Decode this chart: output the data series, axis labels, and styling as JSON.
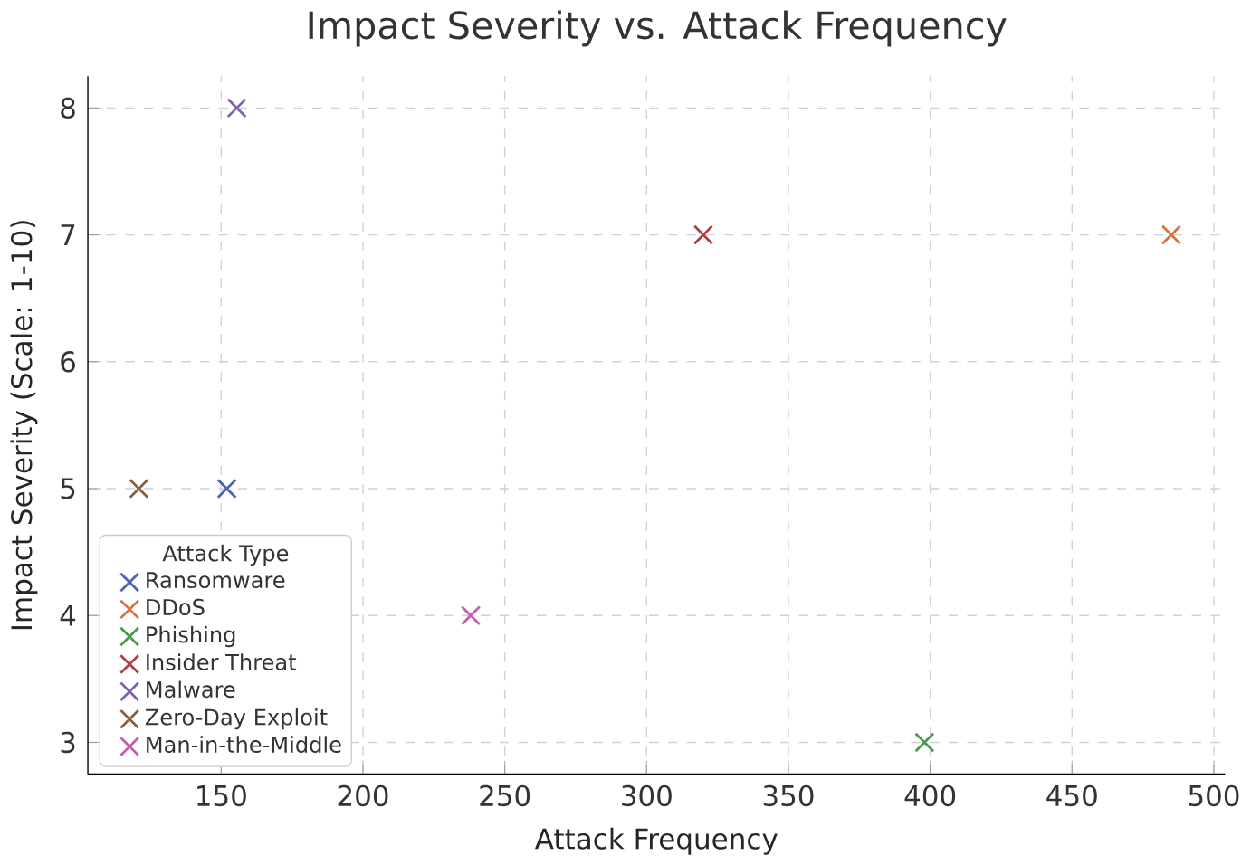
{
  "chart_data": {
    "type": "scatter",
    "title": "Impact Severity vs. Attack Frequency",
    "xlabel": "Attack Frequency",
    "ylabel": "Impact Severity (Scale: 1-10)",
    "legend_title": "Attack Type",
    "legend": "bottom left",
    "grid": true,
    "marker": "cross",
    "xlim": [
      103,
      504
    ],
    "xticks": [
      150,
      200,
      250,
      300,
      350,
      400,
      450,
      500
    ],
    "ylim": [
      2.75,
      8.25
    ],
    "yticks": [
      3,
      4,
      5,
      6,
      7,
      8
    ],
    "series": [
      {
        "name": "Ransomware",
        "color": "#4a62b8",
        "x": [
          152
        ],
        "values": [
          5
        ]
      },
      {
        "name": "DDoS",
        "color": "#d5703f",
        "x": [
          485
        ],
        "values": [
          7
        ]
      },
      {
        "name": "Phishing",
        "color": "#4a9a4a",
        "x": [
          398
        ],
        "values": [
          3
        ]
      },
      {
        "name": "Insider Threat",
        "color": "#b04040",
        "x": [
          320
        ],
        "values": [
          7
        ]
      },
      {
        "name": "Malware",
        "color": "#8060b0",
        "x": [
          155.5
        ],
        "values": [
          8
        ]
      },
      {
        "name": "Zero-Day Exploit",
        "color": "#8a6040",
        "x": [
          121
        ],
        "values": [
          5
        ]
      },
      {
        "name": "Man-in-the-Middle",
        "color": "#c060b0",
        "x": [
          238
        ],
        "values": [
          4
        ]
      }
    ]
  }
}
